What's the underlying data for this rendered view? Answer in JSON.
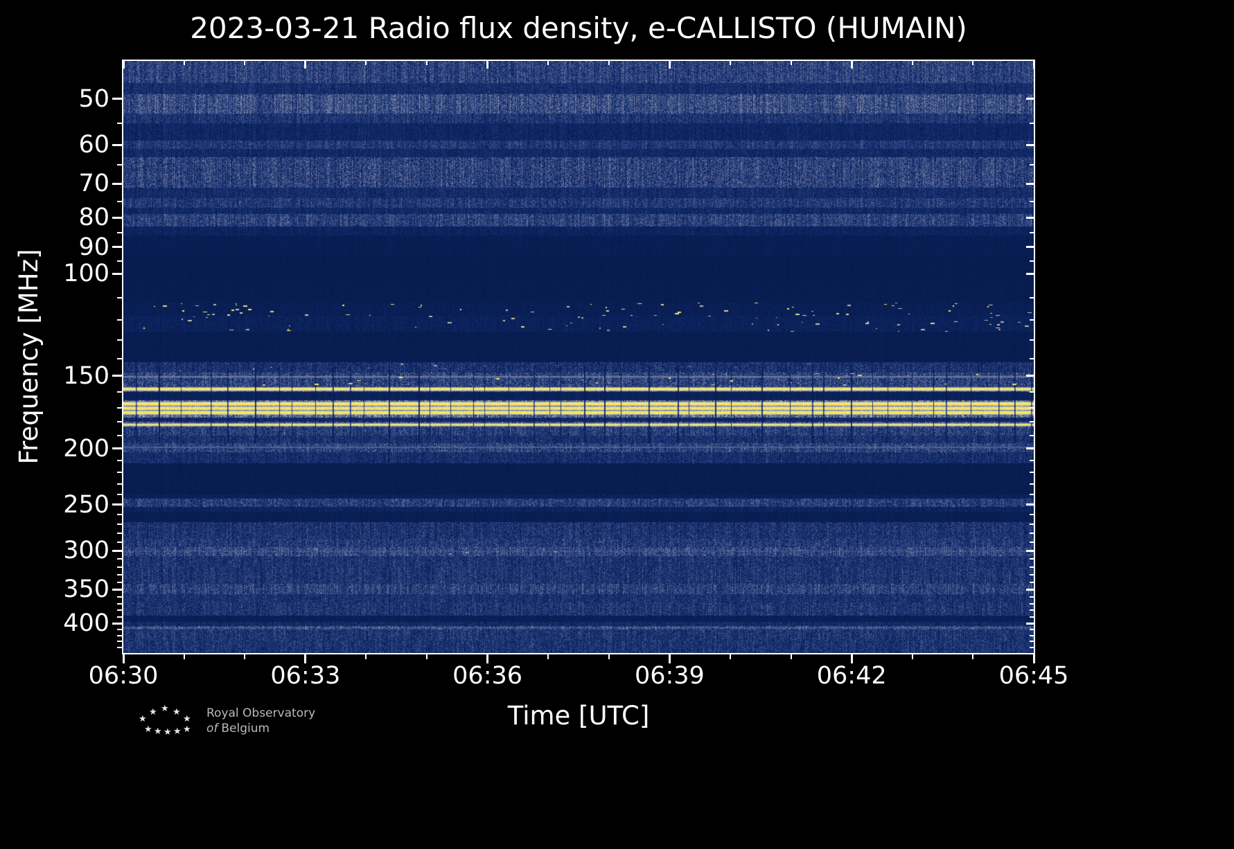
{
  "page": {
    "background": "#000000"
  },
  "chart_data": {
    "type": "heatmap",
    "title": "2023-03-21 Radio flux density, e-CALLISTO (HUMAIN)",
    "xlabel": "Time [UTC]",
    "ylabel": "Frequency [MHz]",
    "x_axis": {
      "start_min": 0,
      "end_min": 15,
      "major_ticks": [
        {
          "min": 0,
          "label": "06:30"
        },
        {
          "min": 3,
          "label": "06:33"
        },
        {
          "min": 6,
          "label": "06:36"
        },
        {
          "min": 9,
          "label": "06:39"
        },
        {
          "min": 12,
          "label": "06:42"
        },
        {
          "min": 15,
          "label": "06:45"
        }
      ],
      "minor_every_min": 1
    },
    "y_axis": {
      "scale": "log",
      "fmin": 43,
      "fmax": 450,
      "major_ticks": [
        {
          "f": 50,
          "label": "50"
        },
        {
          "f": 60,
          "label": "60"
        },
        {
          "f": 70,
          "label": "70"
        },
        {
          "f": 80,
          "label": "80"
        },
        {
          "f": 90,
          "label": "90"
        },
        {
          "f": 100,
          "label": "100"
        },
        {
          "f": 150,
          "label": "150"
        },
        {
          "f": 200,
          "label": "200"
        },
        {
          "f": 250,
          "label": "250"
        },
        {
          "f": 300,
          "label": "300"
        },
        {
          "f": 350,
          "label": "350"
        },
        {
          "f": 400,
          "label": "400"
        }
      ],
      "minor_ticks": [
        55,
        65,
        75,
        85,
        95,
        110,
        120,
        130,
        140,
        160,
        170,
        180,
        190,
        210,
        220,
        230,
        240,
        260,
        270,
        280,
        290,
        310,
        320,
        330,
        340,
        360,
        370,
        380,
        390,
        410,
        420,
        430,
        440
      ]
    },
    "axis_color": "#ffffff",
    "seed": 20230321,
    "colormap": [
      [
        0.0,
        "#071a4a"
      ],
      [
        0.15,
        "#0d2766"
      ],
      [
        0.3,
        "#2a4080"
      ],
      [
        0.45,
        "#5b6a95"
      ],
      [
        0.6,
        "#9399ab"
      ],
      [
        0.72,
        "#c2bfad"
      ],
      [
        0.82,
        "#e8dd8f"
      ],
      [
        0.9,
        "#f8ea5e"
      ],
      [
        1.0,
        "#ffee45"
      ]
    ],
    "bands_note": "each band = [f_low_MHz, f_high_MHz, base_level, noise_amp, blip_density, blip_value]",
    "bands": [
      [
        43,
        47,
        0.28,
        0.22,
        0,
        0
      ],
      [
        47,
        49,
        0.18,
        0.16,
        0,
        0
      ],
      [
        49,
        53,
        0.33,
        0.24,
        0,
        0
      ],
      [
        53,
        55,
        0.22,
        0.18,
        0,
        0
      ],
      [
        55,
        59,
        0.13,
        0.12,
        0,
        0
      ],
      [
        59,
        61,
        0.24,
        0.18,
        0,
        0
      ],
      [
        61,
        63,
        0.15,
        0.13,
        0,
        0
      ],
      [
        63,
        71,
        0.28,
        0.26,
        0,
        0
      ],
      [
        71,
        74,
        0.17,
        0.14,
        0,
        0
      ],
      [
        74,
        77,
        0.24,
        0.2,
        0,
        0
      ],
      [
        77,
        79,
        0.15,
        0.12,
        0,
        0
      ],
      [
        79,
        83,
        0.28,
        0.22,
        0,
        0
      ],
      [
        83,
        86,
        0.11,
        0.1,
        0,
        0
      ],
      [
        86,
        93,
        0.05,
        0.05,
        0,
        0
      ],
      [
        93,
        103,
        0.03,
        0.03,
        0,
        0
      ],
      [
        103,
        112,
        0.035,
        0.04,
        0,
        0
      ],
      [
        112,
        118,
        0.06,
        0.07,
        0.05,
        1.0
      ],
      [
        118,
        126,
        0.09,
        0.1,
        0.04,
        0.85
      ],
      [
        126,
        142,
        0.04,
        0.04,
        0,
        0
      ],
      [
        142,
        148,
        0.2,
        0.2,
        0.01,
        0.7
      ],
      [
        148,
        156,
        0.28,
        0.26,
        0.02,
        0.95
      ],
      [
        156,
        160,
        0.3,
        0.22,
        0,
        0
      ],
      [
        160,
        165,
        0.09,
        0.08,
        0,
        0
      ],
      [
        165,
        177,
        0.45,
        0.25,
        0,
        0
      ],
      [
        177,
        180,
        0.14,
        0.12,
        0,
        0
      ],
      [
        180,
        184,
        0.35,
        0.22,
        0,
        0
      ],
      [
        184,
        190,
        0.26,
        0.22,
        0,
        0
      ],
      [
        190,
        196,
        0.2,
        0.18,
        0,
        0
      ],
      [
        196,
        203,
        0.28,
        0.24,
        0,
        0
      ],
      [
        203,
        212,
        0.18,
        0.17,
        0,
        0
      ],
      [
        212,
        240,
        0.04,
        0.045,
        0,
        0
      ],
      [
        240,
        244,
        0.09,
        0.08,
        0,
        0
      ],
      [
        244,
        252,
        0.26,
        0.23,
        0,
        0
      ],
      [
        252,
        257,
        0.11,
        0.1,
        0,
        0
      ],
      [
        257,
        268,
        0.055,
        0.05,
        0,
        0
      ],
      [
        268,
        286,
        0.21,
        0.2,
        0,
        0
      ],
      [
        286,
        296,
        0.24,
        0.22,
        0,
        0
      ],
      [
        296,
        306,
        0.3,
        0.24,
        0.012,
        0.6
      ],
      [
        306,
        320,
        0.21,
        0.2,
        0,
        0
      ],
      [
        320,
        342,
        0.22,
        0.2,
        0,
        0
      ],
      [
        342,
        356,
        0.28,
        0.22,
        0,
        0
      ],
      [
        356,
        368,
        0.2,
        0.18,
        0,
        0
      ],
      [
        368,
        388,
        0.22,
        0.2,
        0,
        0
      ],
      [
        388,
        398,
        0.07,
        0.06,
        0,
        0
      ],
      [
        398,
        404,
        0.16,
        0.14,
        0,
        0
      ],
      [
        404,
        410,
        0.3,
        0.26,
        0,
        0
      ],
      [
        410,
        428,
        0.22,
        0.2,
        0,
        0
      ],
      [
        428,
        450,
        0.21,
        0.2,
        0,
        0
      ]
    ],
    "rfi_lines_note": "each line = [freq_MHz, half_width_MHz, intensity_0_to_1]",
    "rfi_lines": [
      [
        150.5,
        0.7,
        0.55
      ],
      [
        158.0,
        1.3,
        1.0
      ],
      [
        167.5,
        1.6,
        1.0
      ],
      [
        170.5,
        1.6,
        0.97
      ],
      [
        173.5,
        1.6,
        1.0
      ],
      [
        182.0,
        1.2,
        0.95
      ],
      [
        199.0,
        0.8,
        0.45
      ],
      [
        300.5,
        0.7,
        0.42
      ],
      [
        407.0,
        0.8,
        0.45
      ]
    ],
    "time_gaps": {
      "dim": 0.28,
      "freq_range": [
        144,
        196
      ],
      "avg_spacing_px": 30
    }
  },
  "logo": {
    "star": "★",
    "line1": "Royal Observatory",
    "line2_italic": "of",
    "line2_rest": "Belgium"
  }
}
